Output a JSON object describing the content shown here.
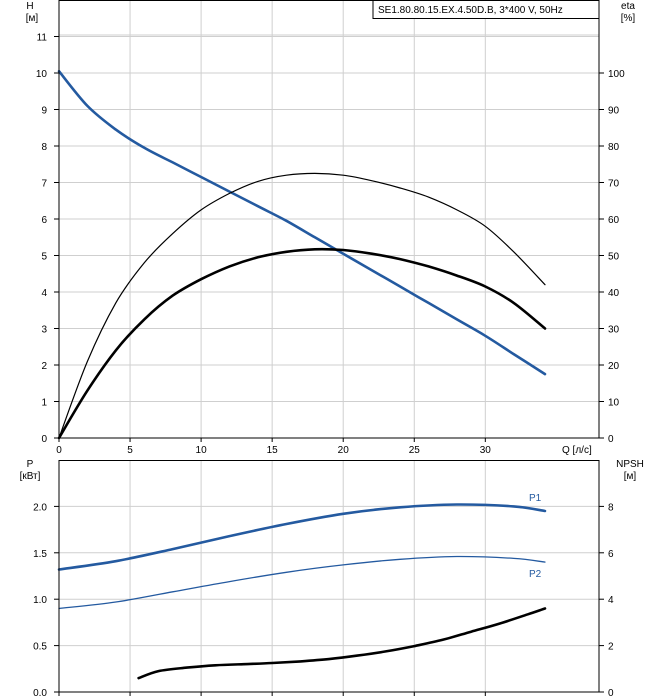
{
  "legend_box": {
    "text": "SE1.80.80.15.EX.4.50D.B, 3*400 V, 50Hz"
  },
  "top_left_axis": {
    "label_line1": "H",
    "label_line2": "[м]"
  },
  "top_right_axis": {
    "label_line1": "eta",
    "label_line2": "[%]"
  },
  "bottom_left_axis": {
    "label_line1": "P",
    "label_line2": "[кВт]"
  },
  "bottom_right_axis": {
    "label_line1": "NPSH",
    "label_line2": "[м]"
  },
  "x_axis": {
    "unit_label": "Q [л/с]"
  },
  "chart_data": [
    {
      "type": "line",
      "title": "",
      "xlabel": "Q [л/с]",
      "ylabel": "H [м]",
      "y2label": "eta [%]",
      "xlim": [
        0,
        38
      ],
      "ylim": [
        0,
        12
      ],
      "y2lim": [
        0,
        120
      ],
      "xticks": [
        0,
        5,
        10,
        15,
        20,
        25,
        30
      ],
      "yticks": [
        0,
        1,
        2,
        3,
        4,
        5,
        6,
        7,
        8,
        9,
        10,
        11
      ],
      "y2ticks": [
        0,
        10,
        20,
        30,
        40,
        50,
        60,
        70,
        80,
        90,
        100
      ],
      "grid": true,
      "series": [
        {
          "axis": "left",
          "color": "#245aa0",
          "width": 2.6,
          "x": [
            0,
            2,
            4,
            6,
            8,
            10,
            12,
            14,
            16,
            18,
            20,
            22,
            24,
            26,
            28,
            30,
            32,
            34.2
          ],
          "y": [
            10.05,
            9.1,
            8.45,
            7.95,
            7.55,
            7.15,
            6.75,
            6.35,
            5.95,
            5.5,
            5.05,
            4.6,
            4.15,
            3.7,
            3.25,
            2.8,
            2.3,
            1.75
          ]
        },
        {
          "axis": "right",
          "color": "#000000",
          "width": 1.2,
          "x": [
            0,
            2,
            4,
            6,
            8,
            10,
            12,
            14,
            16,
            18,
            20,
            22,
            24,
            26,
            28,
            30,
            32,
            34.2
          ],
          "y": [
            0,
            21,
            37,
            48,
            56,
            62.5,
            67,
            70.3,
            72,
            72.5,
            72,
            70.5,
            68.5,
            66,
            62.5,
            58,
            51,
            42
          ]
        },
        {
          "axis": "right",
          "color": "#000000",
          "width": 2.6,
          "x": [
            0,
            2,
            4,
            6,
            8,
            10,
            12,
            14,
            16,
            18,
            20,
            22,
            24,
            26,
            28,
            30,
            32,
            34.2
          ],
          "y": [
            0,
            13,
            24,
            32.5,
            39,
            43.5,
            47,
            49.5,
            51,
            51.7,
            51.5,
            50.5,
            49,
            47,
            44.5,
            41.5,
            37,
            30
          ]
        }
      ]
    },
    {
      "type": "line",
      "title": "",
      "xlabel": "Q [л/с]",
      "ylabel": "P [кВт]",
      "y2label": "NPSH [м]",
      "xlim": [
        0,
        38
      ],
      "ylim": [
        0,
        2.5
      ],
      "y2lim": [
        0,
        10
      ],
      "yticks": [
        0.0,
        0.5,
        1.0,
        1.5,
        2.0
      ],
      "ytick_labels": [
        "0.0",
        "0.5",
        "1.0",
        "1.5",
        "2.0"
      ],
      "y2ticks": [
        0,
        2,
        4,
        6,
        8
      ],
      "grid": true,
      "series": [
        {
          "name": "P1",
          "axis": "left",
          "color": "#245aa0",
          "width": 2.6,
          "x": [
            0,
            4,
            8,
            12,
            16,
            20,
            24,
            28,
            32,
            34.2
          ],
          "y": [
            1.32,
            1.41,
            1.54,
            1.68,
            1.81,
            1.92,
            1.99,
            2.02,
            2.0,
            1.95
          ]
        },
        {
          "name": "P2",
          "axis": "left",
          "color": "#245aa0",
          "width": 1.3,
          "x": [
            0,
            4,
            8,
            12,
            16,
            20,
            24,
            28,
            32,
            34.2
          ],
          "y": [
            0.9,
            0.97,
            1.08,
            1.19,
            1.29,
            1.37,
            1.43,
            1.46,
            1.44,
            1.4
          ]
        },
        {
          "axis": "right",
          "color": "#000000",
          "width": 2.6,
          "x": [
            5.6,
            7,
            9,
            11,
            13,
            15,
            17,
            19,
            21,
            23,
            25,
            27,
            29,
            31,
            33,
            34.2
          ],
          "y": [
            0.6,
            0.9,
            1.05,
            1.15,
            1.2,
            1.25,
            1.32,
            1.42,
            1.57,
            1.75,
            1.98,
            2.25,
            2.6,
            2.95,
            3.35,
            3.6
          ]
        }
      ]
    }
  ]
}
